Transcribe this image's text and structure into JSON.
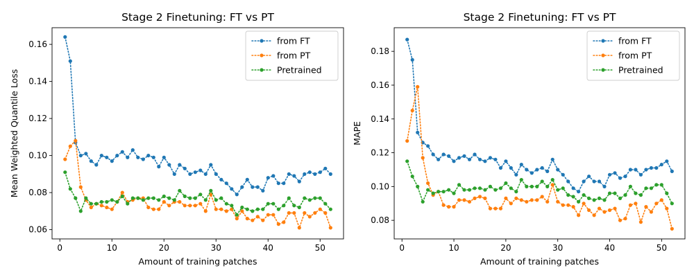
{
  "chart_data": [
    {
      "type": "line",
      "title": "Stage 2 Finetuning: FT vs PT",
      "xlabel": "Amount of training patches",
      "ylabel": "Mean Weighted Quantile Loss",
      "xlim": [
        -1.5,
        54.5
      ],
      "ylim": [
        0.055,
        0.169
      ],
      "xticks": [
        0,
        10,
        20,
        30,
        40,
        50
      ],
      "yticks": [
        0.06,
        0.08,
        0.1,
        0.12,
        0.14,
        0.16
      ],
      "ytick_labels": [
        "0.06",
        "0.08",
        "0.10",
        "0.12",
        "0.14",
        "0.16"
      ],
      "legend_position": "top-right",
      "x": [
        1,
        2,
        3,
        4,
        5,
        6,
        7,
        8,
        9,
        10,
        11,
        12,
        13,
        14,
        15,
        16,
        17,
        18,
        19,
        20,
        21,
        22,
        23,
        24,
        25,
        26,
        27,
        28,
        29,
        30,
        31,
        32,
        33,
        34,
        35,
        36,
        37,
        38,
        39,
        40,
        41,
        42,
        43,
        44,
        45,
        46,
        47,
        48,
        49,
        50,
        51,
        52
      ],
      "series": [
        {
          "name": "from FT",
          "color": "#1f77b4",
          "values": [
            0.164,
            0.151,
            0.107,
            0.1,
            0.101,
            0.097,
            0.095,
            0.1,
            0.099,
            0.097,
            0.1,
            0.102,
            0.099,
            0.103,
            0.099,
            0.098,
            0.1,
            0.099,
            0.094,
            0.099,
            0.095,
            0.09,
            0.095,
            0.093,
            0.09,
            0.091,
            0.092,
            0.09,
            0.095,
            0.09,
            0.087,
            0.085,
            0.082,
            0.079,
            0.083,
            0.087,
            0.083,
            0.083,
            0.081,
            0.088,
            0.089,
            0.085,
            0.085,
            0.09,
            0.089,
            0.086,
            0.09,
            0.091,
            0.09,
            0.091,
            0.093,
            0.09
          ]
        },
        {
          "name": "from PT",
          "color": "#ff7f0e",
          "values": [
            0.098,
            0.105,
            0.108,
            0.083,
            0.076,
            0.072,
            0.074,
            0.073,
            0.072,
            0.071,
            0.075,
            0.08,
            0.075,
            0.076,
            0.077,
            0.077,
            0.072,
            0.071,
            0.071,
            0.075,
            0.073,
            0.075,
            0.075,
            0.073,
            0.073,
            0.073,
            0.074,
            0.07,
            0.079,
            0.071,
            0.071,
            0.07,
            0.071,
            0.066,
            0.07,
            0.066,
            0.065,
            0.067,
            0.065,
            0.068,
            0.068,
            0.063,
            0.064,
            0.069,
            0.069,
            0.061,
            0.069,
            0.067,
            0.069,
            0.071,
            0.069,
            0.061
          ]
        },
        {
          "name": "Pretrained",
          "color": "#2ca02c",
          "values": [
            0.091,
            0.082,
            0.077,
            0.07,
            0.077,
            0.074,
            0.074,
            0.075,
            0.075,
            0.076,
            0.075,
            0.078,
            0.074,
            0.077,
            0.077,
            0.076,
            0.077,
            0.077,
            0.076,
            0.078,
            0.077,
            0.076,
            0.081,
            0.078,
            0.077,
            0.077,
            0.079,
            0.076,
            0.081,
            0.076,
            0.077,
            0.074,
            0.073,
            0.068,
            0.072,
            0.071,
            0.07,
            0.071,
            0.071,
            0.074,
            0.074,
            0.071,
            0.073,
            0.077,
            0.073,
            0.072,
            0.077,
            0.076,
            0.077,
            0.077,
            0.074,
            0.071
          ]
        }
      ]
    },
    {
      "type": "line",
      "title": "Stage 2 Finetuning: FT vs PT",
      "xlabel": "Amount of training patches",
      "ylabel": "MAPE",
      "xlim": [
        -1.5,
        54.5
      ],
      "ylim": [
        0.069,
        0.194
      ],
      "xticks": [
        0,
        10,
        20,
        30,
        40,
        50
      ],
      "yticks": [
        0.08,
        0.1,
        0.12,
        0.14,
        0.16,
        0.18
      ],
      "ytick_labels": [
        "0.08",
        "0.10",
        "0.12",
        "0.14",
        "0.16",
        "0.18"
      ],
      "legend_position": "top-right",
      "x": [
        1,
        2,
        3,
        4,
        5,
        6,
        7,
        8,
        9,
        10,
        11,
        12,
        13,
        14,
        15,
        16,
        17,
        18,
        19,
        20,
        21,
        22,
        23,
        24,
        25,
        26,
        27,
        28,
        29,
        30,
        31,
        32,
        33,
        34,
        35,
        36,
        37,
        38,
        39,
        40,
        41,
        42,
        43,
        44,
        45,
        46,
        47,
        48,
        49,
        50,
        51,
        52
      ],
      "series": [
        {
          "name": "from FT",
          "color": "#1f77b4",
          "values": [
            0.187,
            0.175,
            0.132,
            0.126,
            0.124,
            0.119,
            0.116,
            0.119,
            0.118,
            0.115,
            0.117,
            0.118,
            0.116,
            0.119,
            0.116,
            0.115,
            0.117,
            0.116,
            0.111,
            0.115,
            0.111,
            0.107,
            0.113,
            0.11,
            0.108,
            0.11,
            0.111,
            0.109,
            0.116,
            0.11,
            0.107,
            0.103,
            0.099,
            0.097,
            0.103,
            0.106,
            0.103,
            0.103,
            0.1,
            0.107,
            0.108,
            0.105,
            0.106,
            0.11,
            0.11,
            0.107,
            0.11,
            0.111,
            0.111,
            0.113,
            0.115,
            0.109
          ]
        },
        {
          "name": "from PT",
          "color": "#ff7f0e",
          "values": [
            0.127,
            0.145,
            0.159,
            0.117,
            0.102,
            0.095,
            0.097,
            0.089,
            0.088,
            0.088,
            0.092,
            0.092,
            0.091,
            0.093,
            0.094,
            0.093,
            0.087,
            0.087,
            0.087,
            0.093,
            0.09,
            0.093,
            0.092,
            0.091,
            0.092,
            0.092,
            0.094,
            0.091,
            0.101,
            0.091,
            0.089,
            0.089,
            0.088,
            0.083,
            0.09,
            0.086,
            0.083,
            0.087,
            0.085,
            0.086,
            0.087,
            0.08,
            0.081,
            0.089,
            0.09,
            0.079,
            0.088,
            0.085,
            0.09,
            0.092,
            0.087,
            0.075
          ]
        },
        {
          "name": "Pretrained",
          "color": "#2ca02c",
          "values": [
            0.115,
            0.106,
            0.1,
            0.091,
            0.098,
            0.096,
            0.097,
            0.097,
            0.098,
            0.096,
            0.101,
            0.098,
            0.098,
            0.099,
            0.099,
            0.098,
            0.1,
            0.098,
            0.099,
            0.102,
            0.099,
            0.097,
            0.104,
            0.1,
            0.1,
            0.1,
            0.103,
            0.1,
            0.104,
            0.098,
            0.099,
            0.095,
            0.094,
            0.091,
            0.095,
            0.093,
            0.092,
            0.093,
            0.092,
            0.096,
            0.096,
            0.093,
            0.095,
            0.1,
            0.096,
            0.095,
            0.099,
            0.099,
            0.101,
            0.101,
            0.096,
            0.09
          ]
        }
      ]
    }
  ]
}
